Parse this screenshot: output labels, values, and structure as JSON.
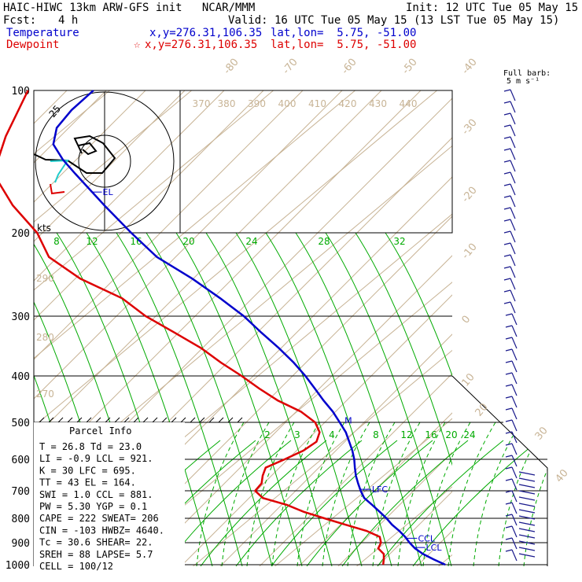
{
  "header": {
    "title": "HAIC-HIWC 13km ARW-GFS init   NCAR/MMM",
    "init": "Init: 12 UTC Tue 05 May 15",
    "fcst_label": "Fcst:",
    "fcst_value": "4 h",
    "valid": "Valid: 16 UTC Tue 05 May 15 (13 LST Tue 05 May 15)"
  },
  "legend": {
    "temp_label": "Temperature",
    "temp_xy": "x,y=276.31,106.35",
    "temp_latlon": "lat,lon=  5.75, -51.00",
    "dew_label": "Dewpoint",
    "dew_marker": "☆",
    "dew_xy": "x,y=276.31,106.35",
    "dew_latlon": "lat,lon=  5.75, -51.00"
  },
  "barb_note": {
    "line1": "Full barb:",
    "line2": "5 m s⁻¹"
  },
  "hodograph": {
    "units": "kts",
    "ring_label": "25"
  },
  "chart_data": {
    "type": "line",
    "title": "HAIC-HIWC 13km ARW-GFS init",
    "pressure_levels": [
      "100",
      "200",
      "300",
      "400",
      "500",
      "600",
      "700",
      "800",
      "900",
      "1000"
    ],
    "isotherm_labels": [
      "-80",
      "-70",
      "-60",
      "-50",
      "-40",
      "-30",
      "-20",
      "-10",
      "0",
      "10",
      "20",
      "30",
      "40"
    ],
    "dry_adiabat_labels": [
      "290",
      "280",
      "270"
    ],
    "theta_e_labels": [
      "380",
      "390",
      "400",
      "410",
      "420",
      "430",
      "440"
    ],
    "mixing_ratio_upper": [
      "8",
      "12",
      "16",
      "20",
      "24",
      "28",
      "32"
    ],
    "mixing_ratio_lower": [
      "2",
      "3",
      "4",
      "8",
      "12",
      "16",
      "20",
      "24"
    ],
    "colors": {
      "temperature": "#0000cc",
      "dewpoint": "#dd0000",
      "mixing_ratio": "#00aa00",
      "theta": "#c8b496"
    },
    "series": [
      {
        "name": "Temperature",
        "pressure": [
          1000,
          975,
          950,
          925,
          900,
          875,
          850,
          825,
          800,
          775,
          750,
          725,
          700,
          675,
          650,
          625,
          600,
          575,
          550,
          525,
          500,
          475,
          450,
          425,
          400,
          375,
          350,
          325,
          300,
          275,
          250,
          225,
          200,
          175,
          150,
          140,
          130,
          120,
          110,
          100
        ],
        "value": [
          30.6,
          28.4,
          26.3,
          24.5,
          23.0,
          21.6,
          20.0,
          18.2,
          16.6,
          14.8,
          12.9,
          10.9,
          9.4,
          8.0,
          6.6,
          5.3,
          4.0,
          2.5,
          0.8,
          -1.0,
          -3.2,
          -5.6,
          -8.4,
          -11.2,
          -14.2,
          -17.6,
          -21.5,
          -25.9,
          -30.5,
          -36.0,
          -42.3,
          -49.8,
          -56.5,
          -63.8,
          -72.0,
          -75.6,
          -79.0,
          -81.0,
          -81.8,
          -82.0
        ]
      },
      {
        "name": "Dewpoint",
        "pressure": [
          1000,
          975,
          950,
          925,
          900,
          875,
          850,
          825,
          800,
          775,
          750,
          725,
          700,
          675,
          650,
          625,
          600,
          575,
          550,
          525,
          500,
          475,
          450,
          425,
          400,
          375,
          350,
          325,
          300,
          275,
          250,
          225,
          200,
          175,
          150,
          125,
          100
        ],
        "value": [
          23.0,
          22.3,
          21.5,
          20.0,
          19.5,
          18.5,
          16.0,
          12.5,
          9.0,
          5.5,
          2.5,
          -1.5,
          -3.5,
          -3.8,
          -4.8,
          -5.6,
          -4.5,
          -3.5,
          -3.2,
          -4.2,
          -6.2,
          -9.5,
          -14.0,
          -18.0,
          -22.0,
          -26.5,
          -31.0,
          -36.5,
          -42.5,
          -48.0,
          -56.0,
          -63.0,
          -68.0,
          -75.0,
          -82.0,
          -86.0,
          -90.0
        ]
      }
    ],
    "levels_marked": [
      {
        "label": "EL",
        "pressure": 164
      },
      {
        "label": "LFC",
        "pressure": 695
      },
      {
        "label": "CCL",
        "pressure": 881
      },
      {
        "label": "LCL",
        "pressure": 921
      },
      {
        "label": "M",
        "pressure": 495
      }
    ]
  },
  "parcel_info": {
    "title": "Parcel Info",
    "rows": [
      "T  =    26.8  Td =  23.0",
      "LI =    -0.9  LCL =  921.",
      "K  =      30  LFC =  695.",
      "TT =      43  EL  =  164.",
      "SWI =    1.0  CCL =  881.",
      "PW =    5.30  YGP =   0.1",
      "CAPE =   222  SWEAT=  206",
      "CIN =   -103  HWBZ= 4640.",
      "Tc =    30.6  SHEAR=  22.",
      "SREH =    88  LAPSE=  5.7",
      "CELL = 100/12"
    ]
  }
}
